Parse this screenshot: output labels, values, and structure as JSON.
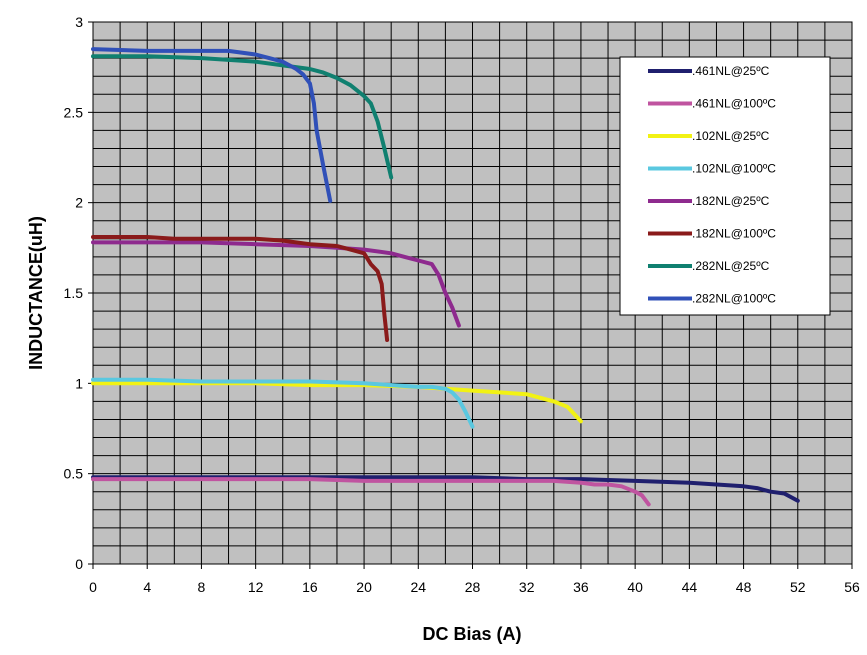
{
  "chart_data": {
    "type": "line",
    "title": "",
    "xlabel": "DC Bias (A)",
    "ylabel": "INDUCTANCE(uH)",
    "xlim": [
      0,
      56
    ],
    "ylim": [
      0,
      3
    ],
    "x_ticks": [
      0,
      4,
      8,
      12,
      16,
      20,
      24,
      28,
      32,
      36,
      40,
      44,
      48,
      52,
      56
    ],
    "y_ticks": [
      0,
      0.5,
      1,
      1.5,
      2,
      2.5,
      3
    ],
    "y_tick_labels": [
      "0",
      "0.5",
      "1",
      "1.5",
      "2",
      "2.5",
      "3"
    ],
    "x_minor_step": 2,
    "y_minor_step": 0.1,
    "grid": true,
    "plot_background": "#c0c0c0",
    "legend_position": "top-right",
    "series": [
      {
        "name": ".461NL@25ºC",
        "color": "#1f1f6e",
        "points": [
          [
            0,
            0.48
          ],
          [
            8,
            0.48
          ],
          [
            16,
            0.48
          ],
          [
            24,
            0.48
          ],
          [
            28,
            0.48
          ],
          [
            32,
            0.47
          ],
          [
            36,
            0.47
          ],
          [
            40,
            0.46
          ],
          [
            44,
            0.45
          ],
          [
            46,
            0.44
          ],
          [
            48,
            0.43
          ],
          [
            49,
            0.42
          ],
          [
            50,
            0.4
          ],
          [
            51,
            0.39
          ],
          [
            52,
            0.35
          ]
        ]
      },
      {
        "name": ".461NL@100ºC",
        "color": "#c054a0",
        "points": [
          [
            0,
            0.47
          ],
          [
            8,
            0.47
          ],
          [
            16,
            0.47
          ],
          [
            20,
            0.46
          ],
          [
            24,
            0.46
          ],
          [
            28,
            0.46
          ],
          [
            32,
            0.46
          ],
          [
            34,
            0.46
          ],
          [
            36,
            0.45
          ],
          [
            37,
            0.44
          ],
          [
            38,
            0.44
          ],
          [
            39,
            0.43
          ],
          [
            40,
            0.4
          ],
          [
            40.5,
            0.38
          ],
          [
            41,
            0.33
          ]
        ]
      },
      {
        "name": ".102NL@25ºC",
        "color": "#f2f214",
        "points": [
          [
            0,
            1.0
          ],
          [
            4,
            1.0
          ],
          [
            8,
            1.0
          ],
          [
            12,
            1.0
          ],
          [
            16,
            0.99
          ],
          [
            20,
            0.99
          ],
          [
            24,
            0.98
          ],
          [
            26,
            0.97
          ],
          [
            28,
            0.96
          ],
          [
            30,
            0.95
          ],
          [
            32,
            0.94
          ],
          [
            33,
            0.92
          ],
          [
            34,
            0.9
          ],
          [
            35,
            0.87
          ],
          [
            36,
            0.79
          ]
        ]
      },
      {
        "name": ".102NL@100ºC",
        "color": "#5ac8e0",
        "points": [
          [
            0,
            1.02
          ],
          [
            4,
            1.02
          ],
          [
            8,
            1.01
          ],
          [
            12,
            1.01
          ],
          [
            16,
            1.01
          ],
          [
            20,
            1.0
          ],
          [
            22,
            0.99
          ],
          [
            24,
            0.98
          ],
          [
            25,
            0.98
          ],
          [
            26,
            0.97
          ],
          [
            26.5,
            0.95
          ],
          [
            27,
            0.91
          ],
          [
            27.5,
            0.84
          ],
          [
            28,
            0.76
          ]
        ]
      },
      {
        "name": ".182NL@25ºC",
        "color": "#8e2a8e",
        "points": [
          [
            0,
            1.78
          ],
          [
            4,
            1.78
          ],
          [
            8,
            1.78
          ],
          [
            12,
            1.77
          ],
          [
            16,
            1.76
          ],
          [
            18,
            1.75
          ],
          [
            20,
            1.74
          ],
          [
            22,
            1.72
          ],
          [
            23,
            1.7
          ],
          [
            24,
            1.68
          ],
          [
            25,
            1.66
          ],
          [
            25.5,
            1.6
          ],
          [
            26,
            1.5
          ],
          [
            26.5,
            1.42
          ],
          [
            27,
            1.32
          ]
        ]
      },
      {
        "name": ".182NL@100ºC",
        "color": "#8a1a1a",
        "points": [
          [
            0,
            1.81
          ],
          [
            4,
            1.81
          ],
          [
            6,
            1.8
          ],
          [
            8,
            1.8
          ],
          [
            12,
            1.8
          ],
          [
            14,
            1.79
          ],
          [
            16,
            1.77
          ],
          [
            18,
            1.76
          ],
          [
            19,
            1.74
          ],
          [
            20,
            1.72
          ],
          [
            20.5,
            1.66
          ],
          [
            21,
            1.62
          ],
          [
            21.3,
            1.55
          ],
          [
            21.5,
            1.38
          ],
          [
            21.7,
            1.24
          ]
        ]
      },
      {
        "name": ".282NL@25ºC",
        "color": "#108070",
        "points": [
          [
            0,
            2.81
          ],
          [
            4,
            2.81
          ],
          [
            8,
            2.8
          ],
          [
            10,
            2.79
          ],
          [
            12,
            2.78
          ],
          [
            14,
            2.76
          ],
          [
            16,
            2.74
          ],
          [
            17,
            2.72
          ],
          [
            18,
            2.69
          ],
          [
            19,
            2.65
          ],
          [
            20,
            2.59
          ],
          [
            20.5,
            2.55
          ],
          [
            21,
            2.45
          ],
          [
            21.5,
            2.3
          ],
          [
            22,
            2.14
          ]
        ]
      },
      {
        "name": ".282NL@100ºC",
        "color": "#3050b8",
        "points": [
          [
            0,
            2.85
          ],
          [
            4,
            2.84
          ],
          [
            8,
            2.84
          ],
          [
            10,
            2.84
          ],
          [
            12,
            2.82
          ],
          [
            13,
            2.8
          ],
          [
            14,
            2.78
          ],
          [
            15,
            2.74
          ],
          [
            15.5,
            2.71
          ],
          [
            16,
            2.66
          ],
          [
            16.3,
            2.55
          ],
          [
            16.5,
            2.4
          ],
          [
            17,
            2.2
          ],
          [
            17.5,
            2.01
          ]
        ]
      }
    ]
  }
}
